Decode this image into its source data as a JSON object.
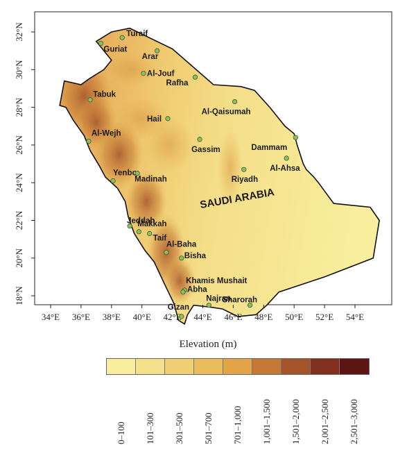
{
  "map": {
    "country_label": "SAUDI ARABIA",
    "lon_ticks": [
      "34°E",
      "36°E",
      "38°E",
      "40°E",
      "42°E",
      "44°E",
      "46°E",
      "48°E",
      "50°E",
      "52°E",
      "54°E"
    ],
    "lat_ticks": [
      "32°N",
      "30°N",
      "28°N",
      "26°N",
      "24°N",
      "22°N",
      "20°N",
      "18°N"
    ],
    "colors": {
      "low": "#f6e99a",
      "mid": "#e2a447",
      "high": "#7a2a16",
      "station": "#8fbf5f"
    },
    "cities": [
      {
        "name": "Turaif",
        "lon": 38.7,
        "lat": 31.7
      },
      {
        "name": "Guriat",
        "lon": 37.3,
        "lat": 31.4
      },
      {
        "name": "Arar",
        "lon": 41.0,
        "lat": 31.0
      },
      {
        "name": "Al-Jouf",
        "lon": 40.1,
        "lat": 29.8
      },
      {
        "name": "Rafha",
        "lon": 43.5,
        "lat": 29.6
      },
      {
        "name": "Tabuk",
        "lon": 36.6,
        "lat": 28.4
      },
      {
        "name": "Al-Qaisumah",
        "lon": 46.1,
        "lat": 28.3
      },
      {
        "name": "Hail",
        "lon": 41.7,
        "lat": 27.4
      },
      {
        "name": "Dammam",
        "lon": 50.1,
        "lat": 26.4
      },
      {
        "name": "Gassim",
        "lon": 43.8,
        "lat": 26.3
      },
      {
        "name": "Al-Wejh",
        "lon": 36.5,
        "lat": 26.2
      },
      {
        "name": "Al-Ahsa",
        "lon": 49.5,
        "lat": 25.3
      },
      {
        "name": "Riyadh",
        "lon": 46.7,
        "lat": 24.7
      },
      {
        "name": "Yenbo",
        "lon": 38.1,
        "lat": 24.1
      },
      {
        "name": "Madinah",
        "lon": 39.7,
        "lat": 24.5
      },
      {
        "name": "Jeddah",
        "lon": 39.2,
        "lat": 21.7
      },
      {
        "name": "Makkah",
        "lon": 39.8,
        "lat": 21.4
      },
      {
        "name": "Taif",
        "lon": 40.5,
        "lat": 21.3
      },
      {
        "name": "Al-Baha",
        "lon": 41.6,
        "lat": 20.3
      },
      {
        "name": "Bisha",
        "lon": 42.6,
        "lat": 20.0
      },
      {
        "name": "Khamis Mushait",
        "lon": 42.8,
        "lat": 18.3
      },
      {
        "name": "Abha",
        "lon": 42.7,
        "lat": 18.2
      },
      {
        "name": "Najran",
        "lon": 44.4,
        "lat": 17.5
      },
      {
        "name": "Sharorah",
        "lon": 47.1,
        "lat": 17.5
      },
      {
        "name": "Gizan",
        "lon": 42.6,
        "lat": 16.9
      }
    ]
  },
  "legend": {
    "title": "Elevation (m)",
    "classes": [
      {
        "label": "0–100",
        "color": "#f8ee9e"
      },
      {
        "label": "101–300",
        "color": "#f4e08a"
      },
      {
        "label": "301–500",
        "color": "#f0cf72"
      },
      {
        "label": "501–700",
        "color": "#ebbd5c"
      },
      {
        "label": "701–1,000",
        "color": "#e2a447"
      },
      {
        "label": "1,001–1,500",
        "color": "#c47a36"
      },
      {
        "label": "1,501–2,000",
        "color": "#a5532a"
      },
      {
        "label": "2,001–2,500",
        "color": "#82311e"
      },
      {
        "label": "2,501–3,000",
        "color": "#5e1412"
      }
    ]
  }
}
